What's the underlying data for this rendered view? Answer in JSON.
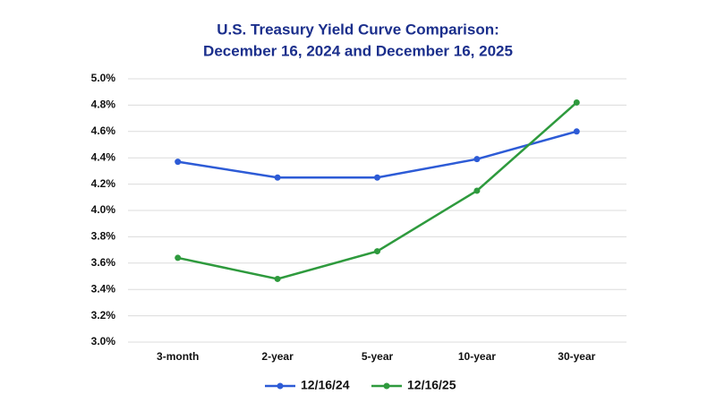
{
  "chart_data": {
    "type": "line",
    "title": [
      "U.S. Treasury Yield Curve Comparison:",
      "December 16, 2024 and December 16, 2025"
    ],
    "categories": [
      "3-month",
      "2-year",
      "5-year",
      "10-year",
      "30-year"
    ],
    "series": [
      {
        "name": "12/16/24",
        "color": "#2d5bd6",
        "values": [
          4.37,
          4.25,
          4.25,
          4.39,
          4.6
        ]
      },
      {
        "name": "12/16/25",
        "color": "#2e9a3d",
        "values": [
          3.64,
          3.48,
          3.69,
          4.15,
          4.82
        ]
      }
    ],
    "ylim": [
      3.0,
      5.0
    ],
    "yticks": [
      {
        "value": 3.0,
        "label": "3.0%"
      },
      {
        "value": 3.2,
        "label": "3.2%"
      },
      {
        "value": 3.4,
        "label": "3.4%"
      },
      {
        "value": 3.6,
        "label": "3.6%"
      },
      {
        "value": 3.8,
        "label": "3.8%"
      },
      {
        "value": 4.0,
        "label": "4.0%"
      },
      {
        "value": 4.2,
        "label": "4.2%"
      },
      {
        "value": 4.4,
        "label": "4.4%"
      },
      {
        "value": 4.6,
        "label": "4.6%"
      },
      {
        "value": 4.8,
        "label": "4.8%"
      },
      {
        "value": 5.0,
        "label": "5.0%"
      }
    ],
    "grid": true
  }
}
